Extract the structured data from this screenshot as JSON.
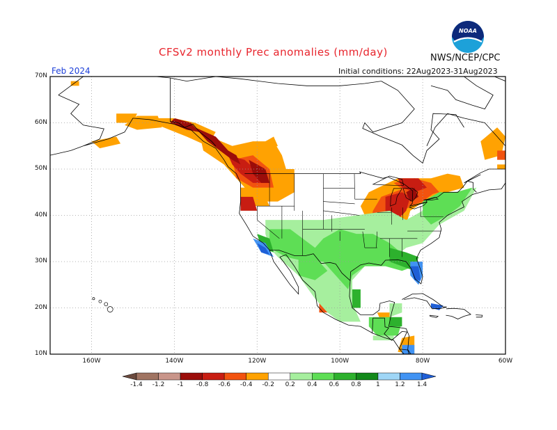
{
  "header": {
    "title": "CFSv2 monthly Prec anomalies (mm/day)",
    "organization": "NWS/NCEP/CPC",
    "logo_text": "NOAA",
    "month": "Feb 2024",
    "initial_conditions": "Initial conditions: 22Aug2023-31Aug2023"
  },
  "map": {
    "lat_labels": [
      "70N",
      "60N",
      "50N",
      "40N",
      "30N",
      "20N",
      "10N"
    ],
    "lon_labels": [
      "160W",
      "140W",
      "120W",
      "100W",
      "80W",
      "60W"
    ],
    "lat_values": [
      70,
      60,
      50,
      40,
      30,
      20,
      10
    ],
    "lon_values": [
      -160,
      -140,
      -120,
      -100,
      -80,
      -60
    ]
  },
  "colorbar": {
    "labels": [
      "-1.4",
      "-1.2",
      "-1",
      "-0.8",
      "-0.6",
      "-0.4",
      "-0.2",
      "0.2",
      "0.4",
      "0.6",
      "0.8",
      "1",
      "1.2",
      "1.4"
    ],
    "colors": [
      "#6b4a3e",
      "#a07462",
      "#c9958a",
      "#9b0d0a",
      "#c81d12",
      "#f2530f",
      "#ffa202",
      "#ffffff",
      "#a6ef9e",
      "#5ede55",
      "#2db12d",
      "#12891a",
      "#9fd6f6",
      "#4193f3",
      "#1f5fd7"
    ]
  },
  "anomaly_colors": {
    "dry_strong": "#c81d12",
    "dry_moderate": "#f2530f",
    "dry_weak": "#ffa202",
    "dry_extreme": "#9b0d0a",
    "wet_weak": "#a6ef9e",
    "wet_moderate": "#5ede55",
    "wet_strong": "#2db12d",
    "wet_very": "#12891a",
    "wet_blue": "#4193f3",
    "wet_blue_dark": "#1f5fd7"
  }
}
